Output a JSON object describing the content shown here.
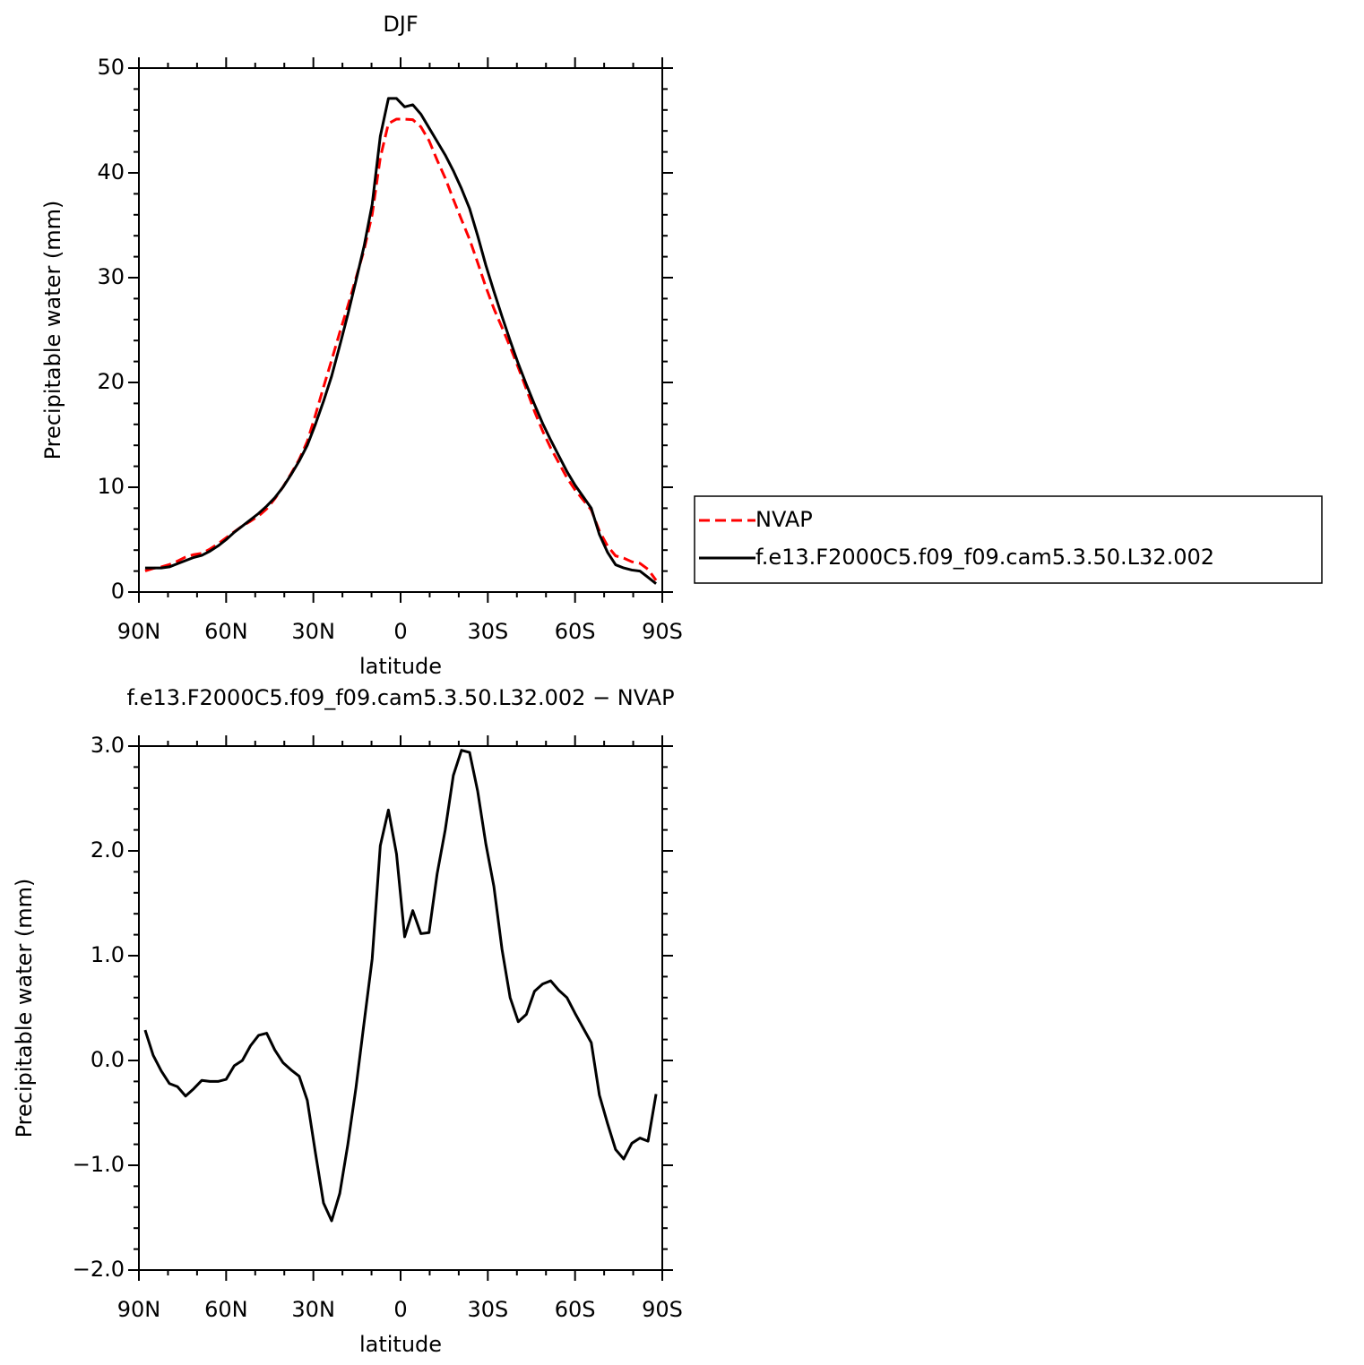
{
  "chart_data": [
    {
      "type": "line",
      "title": "DJF",
      "xlabel": "latitude",
      "ylabel": "Precipitable water (mm)",
      "x": [
        87.86,
        85.1,
        82.31,
        79.53,
        76.74,
        73.95,
        71.16,
        68.37,
        65.58,
        62.79,
        60.0,
        57.21,
        54.42,
        51.63,
        48.84,
        46.05,
        43.26,
        40.47,
        37.67,
        34.88,
        32.09,
        29.3,
        26.51,
        23.72,
        20.93,
        18.14,
        15.35,
        12.56,
        9.77,
        6.98,
        4.19,
        1.4,
        -1.4,
        -4.19,
        -6.98,
        -9.77,
        -12.56,
        -15.35,
        -18.14,
        -20.93,
        -23.72,
        -26.51,
        -29.3,
        -32.09,
        -34.88,
        -37.67,
        -40.47,
        -43.26,
        -46.05,
        -48.84,
        -51.63,
        -54.42,
        -57.21,
        -60.0,
        -62.79,
        -65.58,
        -68.37,
        -71.16,
        -73.95,
        -76.74,
        -79.53,
        -82.31,
        -85.1,
        -87.86
      ],
      "series": [
        {
          "name": "NVAP",
          "color": "#ff0000",
          "line_style": "dashed",
          "values": [
            2.01,
            2.25,
            2.4,
            2.62,
            2.95,
            3.34,
            3.57,
            3.69,
            4.1,
            4.6,
            5.18,
            5.75,
            6.3,
            6.76,
            7.26,
            7.94,
            8.9,
            10.02,
            11.29,
            12.65,
            14.38,
            16.88,
            19.56,
            22.13,
            24.77,
            27.3,
            29.96,
            32.64,
            36.03,
            41.45,
            44.71,
            45.13,
            45.12,
            45.07,
            44.39,
            43.08,
            41.22,
            39.5,
            37.48,
            35.54,
            33.66,
            31.43,
            29.13,
            27.04,
            25.24,
            23.4,
            21.43,
            19.36,
            17.24,
            15.37,
            13.74,
            12.33,
            10.9,
            9.75,
            8.79,
            7.83,
            5.83,
            4.4,
            3.45,
            3.24,
            2.89,
            2.74,
            2.17,
            1.12
          ]
        },
        {
          "name": "f.e13.F2000C5.f09_f09.cam5.3.50.L32.002",
          "color": "#000000",
          "line_style": "solid",
          "values": [
            2.3,
            2.3,
            2.3,
            2.4,
            2.7,
            3.0,
            3.3,
            3.5,
            3.9,
            4.4,
            5.0,
            5.7,
            6.3,
            6.9,
            7.5,
            8.2,
            9.0,
            10.0,
            11.2,
            12.5,
            14.0,
            16.0,
            18.2,
            20.6,
            23.5,
            26.5,
            29.7,
            33.0,
            37.0,
            43.5,
            47.1,
            47.1,
            46.3,
            46.5,
            45.6,
            44.3,
            43.0,
            41.7,
            40.2,
            38.5,
            36.6,
            34.0,
            31.2,
            28.7,
            26.3,
            24.0,
            21.8,
            19.8,
            17.9,
            16.1,
            14.5,
            13.0,
            11.5,
            10.2,
            9.1,
            8.0,
            5.5,
            3.8,
            2.6,
            2.3,
            2.1,
            2.0,
            1.4,
            0.8
          ]
        }
      ],
      "xlim": [
        90,
        -90
      ],
      "xticks": [
        {
          "value": 90,
          "label": "90N"
        },
        {
          "value": 60,
          "label": "60N"
        },
        {
          "value": 30,
          "label": "30N"
        },
        0,
        {
          "value": -30,
          "label": "30S"
        },
        {
          "value": -60,
          "label": "60S"
        },
        {
          "value": -90,
          "label": "90S"
        }
      ],
      "ylim": [
        0,
        50
      ],
      "yticks": [
        0,
        10,
        20,
        30,
        40,
        50
      ],
      "legend": "right"
    },
    {
      "type": "line",
      "title": "f.e13.F2000C5.f09_f09.cam5.3.50.L32.002 − NVAP",
      "xlabel": "latitude",
      "ylabel": "Precipitable water (mm)",
      "x": [
        87.86,
        85.1,
        82.31,
        79.53,
        76.74,
        73.95,
        71.16,
        68.37,
        65.58,
        62.79,
        60.0,
        57.21,
        54.42,
        51.63,
        48.84,
        46.05,
        43.26,
        40.47,
        37.67,
        34.88,
        32.09,
        29.3,
        26.51,
        23.72,
        20.93,
        18.14,
        15.35,
        12.56,
        9.77,
        6.98,
        4.19,
        1.4,
        -1.4,
        -4.19,
        -6.98,
        -9.77,
        -12.56,
        -15.35,
        -18.14,
        -20.93,
        -23.72,
        -26.51,
        -29.3,
        -32.09,
        -34.88,
        -37.67,
        -40.47,
        -43.26,
        -46.05,
        -48.84,
        -51.63,
        -54.42,
        -57.21,
        -60.0,
        -62.79,
        -65.58,
        -68.37,
        -71.16,
        -73.95,
        -76.74,
        -79.53,
        -82.31,
        -85.1,
        -87.86
      ],
      "color": "#000000",
      "values": [
        0.29,
        0.05,
        -0.1,
        -0.22,
        -0.25,
        -0.34,
        -0.27,
        -0.19,
        -0.2,
        -0.2,
        -0.18,
        -0.05,
        0.0,
        0.14,
        0.24,
        0.26,
        0.1,
        -0.02,
        -0.09,
        -0.15,
        -0.38,
        -0.88,
        -1.36,
        -1.53,
        -1.27,
        -0.8,
        -0.26,
        0.36,
        0.97,
        2.05,
        2.39,
        1.97,
        1.18,
        1.43,
        1.21,
        1.22,
        1.78,
        2.2,
        2.72,
        2.96,
        2.94,
        2.57,
        2.07,
        1.66,
        1.06,
        0.6,
        0.37,
        0.44,
        0.66,
        0.73,
        0.76,
        0.67,
        0.6,
        0.45,
        0.31,
        0.17,
        -0.33,
        -0.6,
        -0.85,
        -0.94,
        -0.79,
        -0.74,
        -0.77,
        -0.32
      ],
      "xlim": [
        90,
        -90
      ],
      "xticks": [
        {
          "value": 90,
          "label": "90N"
        },
        {
          "value": 60,
          "label": "60N"
        },
        {
          "value": 30,
          "label": "30N"
        },
        0,
        {
          "value": -30,
          "label": "30S"
        },
        {
          "value": -60,
          "label": "60S"
        },
        {
          "value": -90,
          "label": "90S"
        }
      ],
      "ylim": [
        -2,
        3
      ],
      "yticks": [
        {
          "value": -2,
          "label": "−2.0"
        },
        {
          "value": -1,
          "label": "−1.0"
        },
        {
          "value": 0,
          "label": "0.0"
        },
        {
          "value": 1,
          "label": "1.0"
        },
        {
          "value": 2,
          "label": "2.0"
        },
        {
          "value": 3,
          "label": "3.0"
        }
      ]
    }
  ]
}
